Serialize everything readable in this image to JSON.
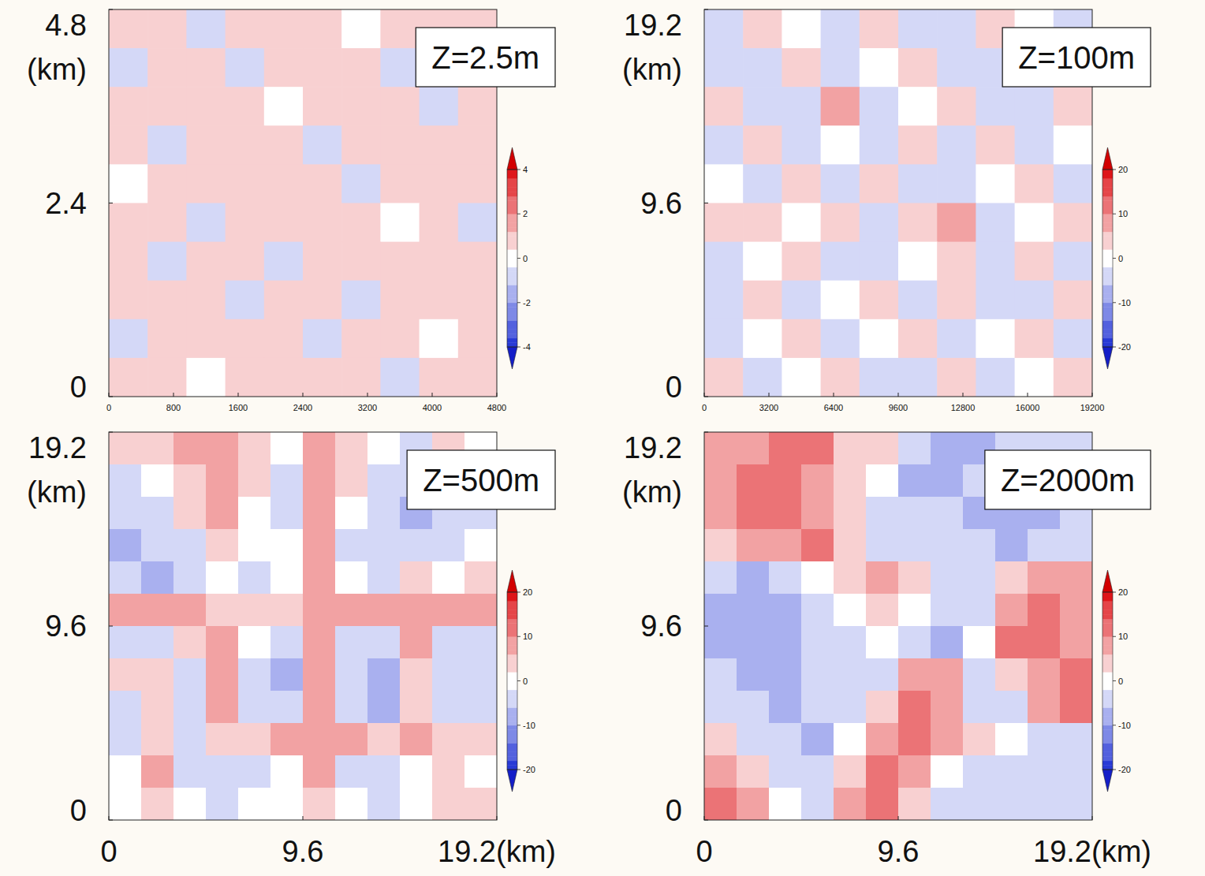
{
  "chart_data": [
    {
      "type": "heatmap",
      "title": "Z=2.5m",
      "xlim": [
        0,
        4800
      ],
      "xticks": [
        0,
        800,
        1600,
        2400,
        3200,
        4000,
        4800
      ],
      "ylim": [
        0,
        4.8
      ],
      "yticks": [
        0,
        2.4,
        4.8
      ],
      "ylabel": "(km)",
      "colorbar": {
        "range": [
          -4,
          4
        ],
        "ticks": [
          -4,
          -2,
          0,
          2,
          4
        ]
      },
      "cells": [
        [
          0.6,
          0.9,
          -0.5,
          0.4,
          1.0,
          0.5,
          -0.4,
          0.7,
          0.5,
          0.8
        ],
        [
          -0.5,
          0.7,
          0.6,
          -0.6,
          0.5,
          0.9,
          0.4,
          -0.5,
          0.8,
          0.4
        ],
        [
          0.8,
          0.4,
          1.1,
          0.5,
          -0.4,
          0.6,
          1.0,
          0.5,
          -0.6,
          0.7
        ],
        [
          0.5,
          -0.6,
          0.7,
          0.9,
          0.5,
          -0.5,
          0.6,
          0.8,
          0.5,
          1.0
        ],
        [
          -0.4,
          0.5,
          0.4,
          0.6,
          1.1,
          0.5,
          -0.6,
          0.4,
          0.9,
          0.5
        ],
        [
          0.9,
          0.6,
          -0.5,
          0.5,
          0.7,
          1.0,
          0.5,
          -0.4,
          0.6,
          -0.5
        ],
        [
          0.5,
          -0.5,
          0.8,
          0.4,
          -0.6,
          0.6,
          0.9,
          0.5,
          1.0,
          0.4
        ],
        [
          0.7,
          0.9,
          0.5,
          -0.5,
          0.5,
          0.4,
          -0.5,
          0.8,
          0.5,
          0.6
        ],
        [
          -0.6,
          0.5,
          0.6,
          1.0,
          0.4,
          -0.6,
          0.7,
          0.5,
          -0.4,
          0.9
        ],
        [
          0.4,
          0.8,
          -0.4,
          0.5,
          0.9,
          0.5,
          0.6,
          -0.5,
          0.7,
          0.5
        ]
      ]
    },
    {
      "type": "heatmap",
      "title": "Z=100m",
      "xlim": [
        0,
        19200
      ],
      "xticks": [
        0,
        3200,
        6400,
        9600,
        12800,
        16000,
        19200
      ],
      "ylim": [
        0,
        19.2
      ],
      "yticks": [
        0,
        9.6,
        19.2
      ],
      "ylabel": "(km)",
      "colorbar": {
        "range": [
          -20,
          20
        ],
        "ticks": [
          -20,
          -10,
          0,
          10,
          20
        ]
      },
      "cells": [
        [
          -3,
          4,
          -2,
          -3,
          5,
          -3,
          -4,
          3,
          -2,
          -3
        ],
        [
          -4,
          -3,
          5,
          -3,
          -2,
          4,
          -3,
          -4,
          5,
          -2
        ],
        [
          4,
          -3,
          -4,
          6,
          -3,
          -2,
          5,
          -3,
          -3,
          4
        ],
        [
          -3,
          5,
          -3,
          -2,
          -4,
          5,
          -3,
          4,
          -3,
          -2
        ],
        [
          -2,
          -3,
          4,
          -3,
          5,
          -3,
          -4,
          -2,
          5,
          -3
        ],
        [
          5,
          4,
          -2,
          5,
          -3,
          4,
          6,
          -3,
          -2,
          4
        ],
        [
          -3,
          -2,
          5,
          -4,
          -3,
          -2,
          5,
          -3,
          4,
          -3
        ],
        [
          -4,
          5,
          -3,
          -2,
          4,
          -3,
          5,
          -4,
          -3,
          5
        ],
        [
          -3,
          -2,
          4,
          -3,
          -2,
          5,
          -3,
          -2,
          5,
          -3
        ],
        [
          4,
          -3,
          -2,
          5,
          -3,
          -3,
          4,
          -3,
          -2,
          4
        ]
      ]
    },
    {
      "type": "heatmap",
      "title": "Z=500m",
      "xlim": [
        0,
        19.2
      ],
      "xticks": [
        0,
        9.6,
        {
          "value": 19.2,
          "label": "19.2(km)"
        }
      ],
      "ylim": [
        0,
        19.2
      ],
      "yticks": [
        0,
        9.6,
        19.2
      ],
      "ylabel": "(km)",
      "colorbar": {
        "range": [
          -20,
          20
        ],
        "ticks": [
          -20,
          -10,
          0,
          10,
          20
        ]
      },
      "cells": [
        [
          2,
          3,
          6,
          8,
          3,
          -2,
          7,
          4,
          -1,
          -3,
          2,
          -2
        ],
        [
          -3,
          -2,
          5,
          9,
          2,
          -4,
          6,
          3,
          -4,
          -5,
          -6,
          -3
        ],
        [
          -6,
          -5,
          2,
          6,
          -2,
          -3,
          7,
          -2,
          -5,
          -7,
          -6,
          -4
        ],
        [
          -7,
          -6,
          -3,
          4,
          -2,
          -1,
          6,
          -3,
          -4,
          -6,
          -5,
          -2
        ],
        [
          -5,
          -7,
          -4,
          -2,
          -3,
          -2,
          8,
          -1,
          -3,
          2,
          -2,
          3
        ],
        [
          8,
          7,
          6,
          3,
          4,
          5,
          9,
          6,
          8,
          9,
          7,
          6
        ],
        [
          -3,
          -4,
          2,
          9,
          -2,
          -4,
          8,
          -5,
          -6,
          7,
          -5,
          -3
        ],
        [
          4,
          3,
          -4,
          8,
          -6,
          -7,
          6,
          -6,
          -8,
          4,
          -6,
          -4
        ],
        [
          -4,
          5,
          -5,
          6,
          -6,
          -5,
          7,
          -5,
          -7,
          5,
          -5,
          -3
        ],
        [
          -3,
          4,
          -4,
          4,
          5,
          6,
          8,
          7,
          5,
          6,
          3,
          2
        ],
        [
          -2,
          6,
          -3,
          -4,
          -3,
          -2,
          6,
          -3,
          -4,
          -2,
          4,
          -2
        ],
        [
          -1,
          3,
          -2,
          -3,
          -2,
          -1,
          5,
          -2,
          -3,
          -2,
          5,
          3
        ]
      ]
    },
    {
      "type": "heatmap",
      "title": "Z=2000m",
      "xlim": [
        0,
        19.2
      ],
      "xticks": [
        0,
        9.6,
        {
          "value": 19.2,
          "label": "19.2(km)"
        }
      ],
      "ylim": [
        0,
        19.2
      ],
      "yticks": [
        0,
        9.6,
        19.2
      ],
      "ylabel": "(km)",
      "colorbar": {
        "range": [
          -20,
          20
        ],
        "ticks": [
          -20,
          -10,
          0,
          10,
          20
        ]
      },
      "cells": [
        [
          6,
          9,
          12,
          10,
          5,
          2,
          -6,
          -8,
          -7,
          -5,
          -4,
          -6
        ],
        [
          8,
          11,
          12,
          9,
          4,
          -2,
          -7,
          -8,
          -6,
          -5,
          -6,
          -7
        ],
        [
          9,
          10,
          11,
          7,
          2,
          -4,
          -6,
          -5,
          -8,
          -7,
          -8,
          -6
        ],
        [
          3,
          6,
          8,
          10,
          4,
          -3,
          -5,
          -3,
          -6,
          -7,
          -5,
          -4
        ],
        [
          -6,
          -8,
          -5,
          -2,
          3,
          6,
          2,
          -4,
          -5,
          4,
          8,
          6
        ],
        [
          -8,
          -9,
          -7,
          -4,
          -2,
          3,
          -2,
          -6,
          -3,
          8,
          11,
          9
        ],
        [
          -7,
          -9,
          -8,
          -6,
          -4,
          -1,
          -3,
          -7,
          -2,
          10,
          12,
          8
        ],
        [
          -5,
          -8,
          -9,
          -6,
          -5,
          -3,
          6,
          7,
          -4,
          5,
          9,
          12
        ],
        [
          -3,
          -6,
          -8,
          -5,
          -3,
          4,
          10,
          9,
          -5,
          -3,
          6,
          11
        ],
        [
          2,
          -4,
          -6,
          -7,
          -2,
          8,
          12,
          6,
          3,
          -2,
          -4,
          -3
        ],
        [
          8,
          3,
          -3,
          -6,
          5,
          11,
          9,
          -2,
          -4,
          -5,
          -6,
          -4
        ],
        [
          10,
          6,
          -2,
          -5,
          8,
          10,
          4,
          -3,
          -5,
          -6,
          -5,
          -3
        ]
      ]
    }
  ]
}
